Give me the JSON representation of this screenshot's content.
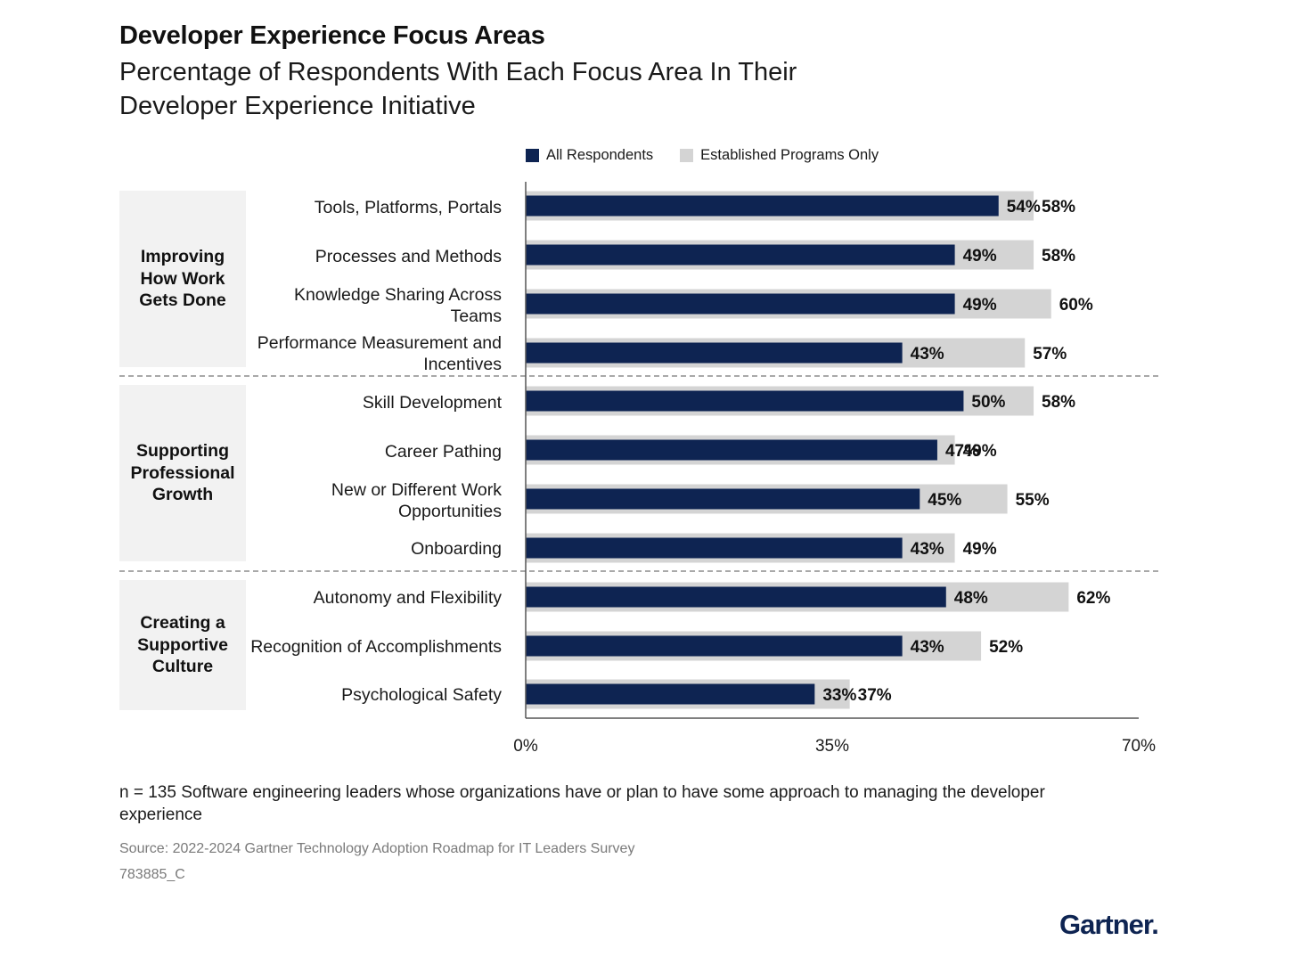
{
  "title": "Developer Experience Focus Areas",
  "subtitle": "Percentage of Respondents With Each Focus Area In Their Developer Experience Initiative",
  "colors": {
    "all_respondents": "#0e2452",
    "established": "#d4d4d4",
    "group_bg": "#f2f2f2"
  },
  "groups": [
    {
      "name": "Improving How Work Gets Done"
    },
    {
      "name": "Supporting Professional Growth"
    },
    {
      "name": "Creating a Supportive Culture"
    }
  ],
  "chart_data": {
    "type": "bar",
    "orientation": "horizontal",
    "title": "Developer Experience Focus Areas",
    "xlim": [
      0,
      70
    ],
    "xticks": [
      0,
      35,
      70
    ],
    "xtick_labels": [
      "0%",
      "35%",
      "70%"
    ],
    "legend": [
      "All Respondents",
      "Established Programs Only"
    ],
    "legend_position": "top",
    "categories": [
      "Tools, Platforms, Portals",
      "Processes and Methods",
      "Knowledge Sharing Across Teams",
      "Performance Measurement and Incentives",
      "Skill Development",
      "Career Pathing",
      "New or Different Work Opportunities",
      "Onboarding",
      "Autonomy and Flexibility",
      "Recognition of Accomplishments",
      "Psychological Safety"
    ],
    "category_groups": [
      0,
      0,
      0,
      0,
      1,
      1,
      1,
      1,
      2,
      2,
      2
    ],
    "series": [
      {
        "name": "All Respondents",
        "values": [
          54,
          49,
          49,
          43,
          50,
          47,
          45,
          43,
          48,
          43,
          33
        ]
      },
      {
        "name": "Established Programs Only",
        "values": [
          58,
          58,
          60,
          57,
          58,
          49,
          55,
          49,
          62,
          52,
          37
        ]
      }
    ],
    "value_suffix": "%"
  },
  "footnote": "n = 135 Software engineering leaders whose organizations have or plan to have some approach to managing the developer experience",
  "source": "Source: 2022-2024 Gartner Technology Adoption Roadmap for IT Leaders Survey",
  "doc_id": "783885_C",
  "logo": "Gartner."
}
